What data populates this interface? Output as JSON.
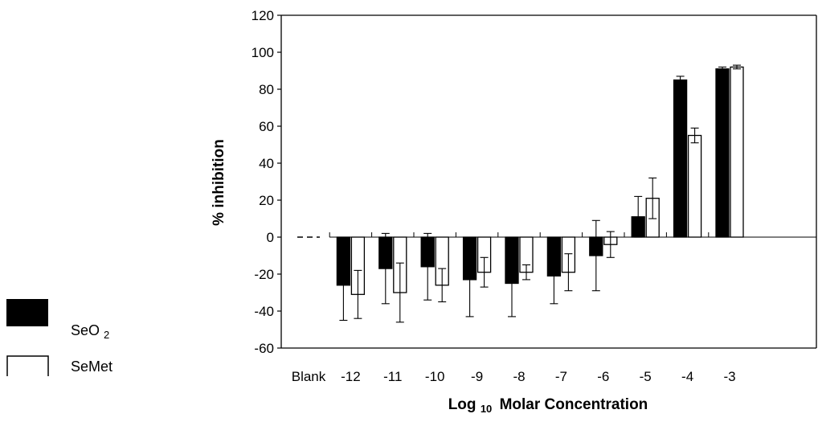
{
  "chart_data": {
    "type": "bar",
    "title": "",
    "xlabel_main": "Log",
    "xlabel_sub": "10",
    "xlabel_rest": "Molar Concentration",
    "ylabel": "% inhibition",
    "ylim": [
      -60,
      120
    ],
    "yticks": [
      "120",
      "100",
      "80",
      "60",
      "40",
      "20",
      "0",
      "-20",
      "-40",
      "-60"
    ],
    "categories": [
      "Blank",
      "-12",
      "-11",
      "-10",
      "-9",
      "-8",
      "-7",
      "-6",
      "-5",
      "-4",
      "-3"
    ],
    "series": [
      {
        "name_main": "SeO",
        "name_sub": "2",
        "fill": "#000000",
        "values": [
          0,
          -26,
          -17,
          -16,
          -23,
          -25,
          -21,
          -10,
          11,
          85,
          91
        ],
        "errors": [
          0,
          19,
          19,
          18,
          20,
          18,
          15,
          19,
          11,
          2,
          1
        ]
      },
      {
        "name_main": "SeMet",
        "name_sub": "",
        "fill": "#ffffff",
        "values": [
          0,
          -31,
          -30,
          -26,
          -19,
          -19,
          -19,
          -4,
          21,
          55,
          92
        ],
        "errors": [
          0,
          13,
          16,
          9,
          8,
          4,
          10,
          7,
          11,
          4,
          1
        ]
      }
    ],
    "blank_line": "dashed",
    "legend_position": "left"
  }
}
